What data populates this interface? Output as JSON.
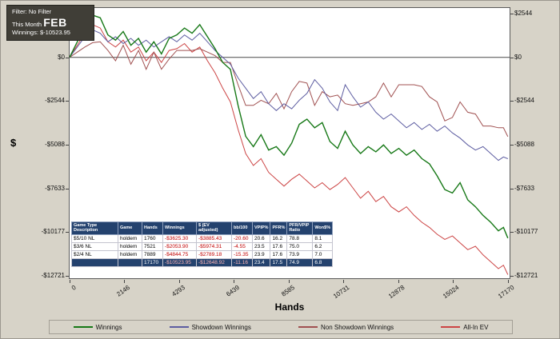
{
  "tooltip": {
    "filter_line": "Filter: No Filter",
    "period_label": "This Month",
    "period_value": "FEB",
    "winnings_line": "Winnings: $-10523.95"
  },
  "chart_data": {
    "type": "line",
    "title": "",
    "xlabel": "Hands",
    "ylabel": "$",
    "xlim": [
      0,
      17240
    ],
    "ylim": [
      -12860,
      2870
    ],
    "grid": "zero-line-only",
    "legend_position": "bottom",
    "x_ticks": {
      "values": [
        0,
        2146,
        4293,
        6439,
        8585,
        10731,
        12878,
        15024,
        17170
      ],
      "labels": [
        "0",
        "2146",
        "4293",
        "6439",
        "8585",
        "10731",
        "12878",
        "15024",
        "17170"
      ]
    },
    "y_ticks": {
      "values": [
        2544,
        0,
        -2544,
        -5088,
        -7633,
        -10177,
        -12721
      ],
      "labels": [
        "$2544",
        "$0",
        "-$2544",
        "-$5088",
        "-$7633",
        "-$10177",
        "-$12721"
      ]
    },
    "x": [
      0,
      300,
      600,
      900,
      1200,
      1500,
      1800,
      2100,
      2400,
      2700,
      3000,
      3300,
      3600,
      3900,
      4200,
      4500,
      4800,
      5100,
      5400,
      5700,
      6000,
      6300,
      6600,
      6900,
      7200,
      7500,
      7800,
      8100,
      8400,
      8700,
      9000,
      9300,
      9600,
      9900,
      10200,
      10500,
      10800,
      11100,
      11400,
      11700,
      12000,
      12300,
      12600,
      12900,
      13200,
      13500,
      13800,
      14100,
      14400,
      14700,
      15000,
      15300,
      15600,
      15900,
      16200,
      16500,
      16800,
      17000,
      17170
    ],
    "series": [
      {
        "name": "All-In EV",
        "color": "#cc4444",
        "width": 1,
        "final_value": -12648.92,
        "values": [
          0,
          700,
          1400,
          1900,
          1700,
          900,
          600,
          1000,
          300,
          600,
          -200,
          300,
          -300,
          400,
          500,
          800,
          300,
          600,
          -200,
          -900,
          -1800,
          -2600,
          -4200,
          -5600,
          -6300,
          -5900,
          -6700,
          -7100,
          -7500,
          -7100,
          -6800,
          -7200,
          -7600,
          -7300,
          -7700,
          -7400,
          -7000,
          -7600,
          -8200,
          -7800,
          -8400,
          -8100,
          -8700,
          -9000,
          -8700,
          -9200,
          -9600,
          -9900,
          -10300,
          -10600,
          -10400,
          -10800,
          -11200,
          -11000,
          -11500,
          -11900,
          -12300,
          -12100,
          -12648.92
        ]
      },
      {
        "name": "Non Showdown Winnings",
        "color": "#a05050",
        "width": 1,
        "final_value": -4620,
        "values": [
          0,
          300,
          600,
          850,
          900,
          400,
          -200,
          700,
          -400,
          400,
          -700,
          300,
          -700,
          -100,
          400,
          400,
          400,
          500,
          300,
          100,
          -300,
          -300,
          -1600,
          -2800,
          -2800,
          -2500,
          -2700,
          -2100,
          -3000,
          -2000,
          -1400,
          -1500,
          -2800,
          -2000,
          -2300,
          -2200,
          -2700,
          -2800,
          -2700,
          -2600,
          -2300,
          -1500,
          -2300,
          -1600,
          -1600,
          -1600,
          -1700,
          -2300,
          -2600,
          -3700,
          -3500,
          -2600,
          -3200,
          -3300,
          -4000,
          -4000,
          -4100,
          -4100,
          -4620
        ]
      },
      {
        "name": "Showdown Winnings",
        "color": "#5d5da1",
        "width": 1,
        "final_value": -5903.95,
        "values": [
          0,
          600,
          1200,
          1600,
          1400,
          900,
          1200,
          800,
          1100,
          700,
          1000,
          600,
          900,
          1200,
          900,
          1300,
          1000,
          1400,
          900,
          400,
          0,
          -400,
          -1200,
          -1800,
          -2400,
          -2000,
          -2700,
          -3100,
          -2700,
          -3000,
          -2500,
          -2100,
          -1300,
          -1800,
          -2600,
          -3100,
          -1600,
          -2300,
          -2900,
          -2600,
          -3200,
          -3600,
          -3300,
          -3700,
          -4100,
          -3800,
          -4200,
          -3900,
          -4300,
          -4000,
          -4400,
          -4700,
          -5100,
          -5400,
          -5200,
          -5600,
          -6000,
          -5800,
          -5903.95
        ]
      },
      {
        "name": "Winnings",
        "color": "#167816",
        "width": 1.4,
        "final_value": -10523.95,
        "values": [
          0,
          900,
          1800,
          2450,
          2300,
          1300,
          1000,
          1500,
          700,
          1100,
          300,
          900,
          200,
          1100,
          1300,
          1700,
          1400,
          1900,
          1200,
          500,
          -300,
          -700,
          -2800,
          -4600,
          -5200,
          -4500,
          -5400,
          -5200,
          -5700,
          -5000,
          -3900,
          -3600,
          -4100,
          -3800,
          -4900,
          -5300,
          -4300,
          -5100,
          -5600,
          -5200,
          -5500,
          -5100,
          -5600,
          -5300,
          -5700,
          -5400,
          -5900,
          -6200,
          -6900,
          -7700,
          -7900,
          -7300,
          -8300,
          -8700,
          -9200,
          -9600,
          -10100,
          -9900,
          -10523.95
        ]
      }
    ]
  },
  "stats_table": {
    "header_bg": "#24426e",
    "negative_color": "#c00000",
    "headers": [
      "Game Type Description",
      "Game",
      "Hands",
      "Winnings",
      "$ (EV adjusted)",
      "bb/100",
      "VPIP%",
      "PFR%",
      "PFR/VPIP Ratio",
      "Won$%"
    ],
    "rows": [
      [
        "$5/10 NL",
        "holdem",
        "1760",
        "-$3625.30",
        "-$3885.43",
        "-20.60",
        "20.6",
        "16.2",
        "78.8",
        "8.1"
      ],
      [
        "$3/6 NL",
        "holdem",
        "7521",
        "-$2053.90",
        "-$5974.31",
        "-4.55",
        "23.5",
        "17.6",
        "75.0",
        "6.2"
      ],
      [
        "$2/4 NL",
        "holdem",
        "7889",
        "-$4844.75",
        "-$2789.18",
        "-15.35",
        "23.9",
        "17.6",
        "73.9",
        "7.0"
      ]
    ],
    "total": [
      "",
      "",
      "17170",
      "-$10523.95",
      "-$12648.92",
      "-11.16",
      "23.4",
      "17.5",
      "74.9",
      "6.8"
    ]
  },
  "legend": {
    "items": [
      {
        "label": "Winnings"
      },
      {
        "label": "Showdown Winnings"
      },
      {
        "label": "Non Showdown Winnings"
      },
      {
        "label": "All-In EV"
      }
    ]
  }
}
